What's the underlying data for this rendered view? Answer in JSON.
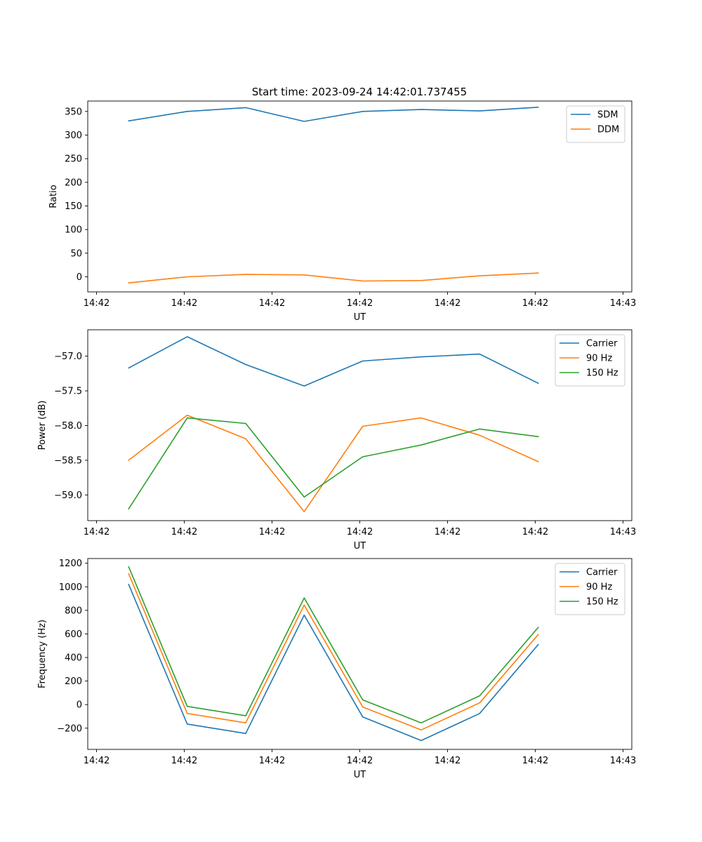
{
  "title": "Start time: 2023-09-24 14:42:01.737455",
  "x_tick_labels": [
    "14:42",
    "14:42",
    "14:42",
    "14:42",
    "14:42",
    "14:42",
    "14:43"
  ],
  "chart_data": [
    {
      "type": "line",
      "title": "Start time: 2023-09-24 14:42:01.737455",
      "xlabel": "UT",
      "ylabel": "Ratio",
      "x": [
        1,
        2,
        3,
        4,
        5,
        6,
        7,
        8
      ],
      "xlim": [
        0.3,
        9.6
      ],
      "ylim": [
        -32,
        372
      ],
      "yticks": [
        0,
        50,
        100,
        150,
        200,
        250,
        300,
        350
      ],
      "ytick_labels": [
        "0",
        "50",
        "100",
        "150",
        "200",
        "250",
        "300",
        "350"
      ],
      "xticks": [
        0.45,
        1.95,
        3.45,
        4.95,
        6.45,
        7.95,
        9.45
      ],
      "xtick_labels": [
        "14:42",
        "14:42",
        "14:42",
        "14:42",
        "14:42",
        "14:42",
        "14:43"
      ],
      "legend_position": "upper-right",
      "series": [
        {
          "name": "SDM",
          "color": "#1f77b4",
          "values": [
            330,
            350,
            358,
            329,
            350,
            354,
            351,
            359
          ]
        },
        {
          "name": "DDM",
          "color": "#ff7f0e",
          "values": [
            -13,
            0,
            5,
            4,
            -9,
            -8,
            2,
            8
          ]
        }
      ]
    },
    {
      "type": "line",
      "title": "",
      "xlabel": "UT",
      "ylabel": "Power (dB)",
      "x": [
        1,
        2,
        3,
        4,
        5,
        6,
        7,
        8
      ],
      "xlim": [
        0.3,
        9.6
      ],
      "ylim": [
        -59.37,
        -56.62
      ],
      "yticks": [
        -59.0,
        -58.5,
        -58.0,
        -57.5,
        -57.0
      ],
      "ytick_labels": [
        "−59.0",
        "−58.5",
        "−58.0",
        "−57.5",
        "−57.0"
      ],
      "xticks": [
        0.45,
        1.95,
        3.45,
        4.95,
        6.45,
        7.95,
        9.45
      ],
      "xtick_labels": [
        "14:42",
        "14:42",
        "14:42",
        "14:42",
        "14:42",
        "14:42",
        "14:43"
      ],
      "legend_position": "upper-right",
      "series": [
        {
          "name": "Carrier",
          "color": "#1f77b4",
          "values": [
            -57.17,
            -56.72,
            -57.12,
            -57.43,
            -57.07,
            -57.01,
            -56.97,
            -57.39
          ]
        },
        {
          "name": "90 Hz",
          "color": "#ff7f0e",
          "values": [
            -58.5,
            -57.85,
            -58.19,
            -59.24,
            -58.01,
            -57.89,
            -58.14,
            -58.52
          ]
        },
        {
          "name": "150 Hz",
          "color": "#2ca02c",
          "values": [
            -59.2,
            -57.89,
            -57.97,
            -59.03,
            -58.45,
            -58.28,
            -58.05,
            -58.16
          ]
        }
      ]
    },
    {
      "type": "line",
      "title": "",
      "xlabel": "UT",
      "ylabel": "Frequency (Hz)",
      "x": [
        1,
        2,
        3,
        4,
        5,
        6,
        7,
        8
      ],
      "xlim": [
        0.3,
        9.6
      ],
      "ylim": [
        -380,
        1240
      ],
      "yticks": [
        -200,
        0,
        200,
        400,
        600,
        800,
        1000,
        1200
      ],
      "ytick_labels": [
        "−200",
        "0",
        "200",
        "400",
        "600",
        "800",
        "1000",
        "1200"
      ],
      "xticks": [
        0.45,
        1.95,
        3.45,
        4.95,
        6.45,
        7.95,
        9.45
      ],
      "xtick_labels": [
        "14:42",
        "14:42",
        "14:42",
        "14:42",
        "14:42",
        "14:42",
        "14:43"
      ],
      "legend_position": "upper-right",
      "series": [
        {
          "name": "Carrier",
          "color": "#1f77b4",
          "values": [
            1020,
            -165,
            -245,
            760,
            -105,
            -305,
            -75,
            510
          ]
        },
        {
          "name": "90 Hz",
          "color": "#ff7f0e",
          "values": [
            1110,
            -75,
            -155,
            845,
            -20,
            -215,
            15,
            595
          ]
        },
        {
          "name": "150 Hz",
          "color": "#2ca02c",
          "values": [
            1170,
            -15,
            -95,
            905,
            40,
            -155,
            75,
            655
          ]
        }
      ]
    }
  ]
}
